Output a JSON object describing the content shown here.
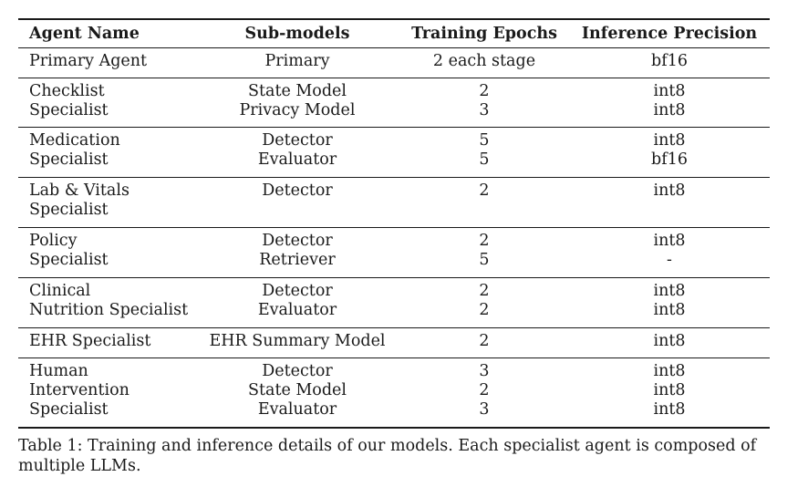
{
  "table": {
    "headers": [
      "Agent Name",
      "Sub-models",
      "Training Epochs",
      "Inference Precision"
    ],
    "rows": [
      {
        "agent": [
          "Primary Agent"
        ],
        "submodels": [
          "Primary"
        ],
        "epochs": [
          "2 each stage"
        ],
        "precision": [
          "bf16"
        ]
      },
      {
        "agent": [
          "Checklist",
          "Specialist"
        ],
        "submodels": [
          "State Model",
          "Privacy Model"
        ],
        "epochs": [
          "2",
          "3"
        ],
        "precision": [
          "int8",
          "int8"
        ]
      },
      {
        "agent": [
          "Medication",
          "Specialist"
        ],
        "submodels": [
          "Detector",
          "Evaluator"
        ],
        "epochs": [
          "5",
          "5"
        ],
        "precision": [
          "int8",
          "bf16"
        ]
      },
      {
        "agent": [
          "Lab & Vitals",
          "Specialist"
        ],
        "submodels": [
          "Detector"
        ],
        "epochs": [
          "2"
        ],
        "precision": [
          "int8"
        ]
      },
      {
        "agent": [
          "Policy",
          "Specialist"
        ],
        "submodels": [
          "Detector",
          "Retriever"
        ],
        "epochs": [
          "2",
          "5"
        ],
        "precision": [
          "int8",
          "-"
        ]
      },
      {
        "agent": [
          "Clinical",
          "Nutrition Specialist"
        ],
        "submodels": [
          "Detector",
          "Evaluator"
        ],
        "epochs": [
          "2",
          "2"
        ],
        "precision": [
          "int8",
          "int8"
        ]
      },
      {
        "agent": [
          "EHR Specialist"
        ],
        "submodels": [
          "EHR Summary Model"
        ],
        "epochs": [
          "2"
        ],
        "precision": [
          "int8"
        ]
      },
      {
        "agent": [
          "Human",
          "Intervention",
          "Specialist"
        ],
        "submodels": [
          "Detector",
          "State Model",
          "Evaluator"
        ],
        "epochs": [
          "3",
          "2",
          "3"
        ],
        "precision": [
          "int8",
          "int8",
          "int8"
        ]
      }
    ]
  },
  "caption": "Table 1: Training and inference details of our models. Each specialist agent is composed of multiple LLMs."
}
